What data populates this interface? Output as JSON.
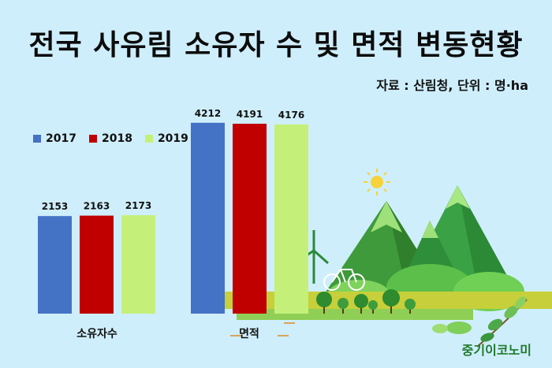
{
  "title": "전국 사유림 소유자 수 및 면적 변동현황",
  "source": "자료 : 산림청, 단위 : 명·ha",
  "brand": "중기이코노미",
  "colors": {
    "s2017": "#4472c4",
    "s2018": "#c00000",
    "s2019": "#c4f07a"
  },
  "chart_data": {
    "type": "bar",
    "categories": [
      "소유자수",
      "면적"
    ],
    "series": [
      {
        "name": "2017",
        "values": [
          2153,
          4212
        ]
      },
      {
        "name": "2018",
        "values": [
          2163,
          4191
        ]
      },
      {
        "name": "2019",
        "values": [
          2173,
          4176
        ]
      }
    ],
    "legend_position": "top-left"
  }
}
